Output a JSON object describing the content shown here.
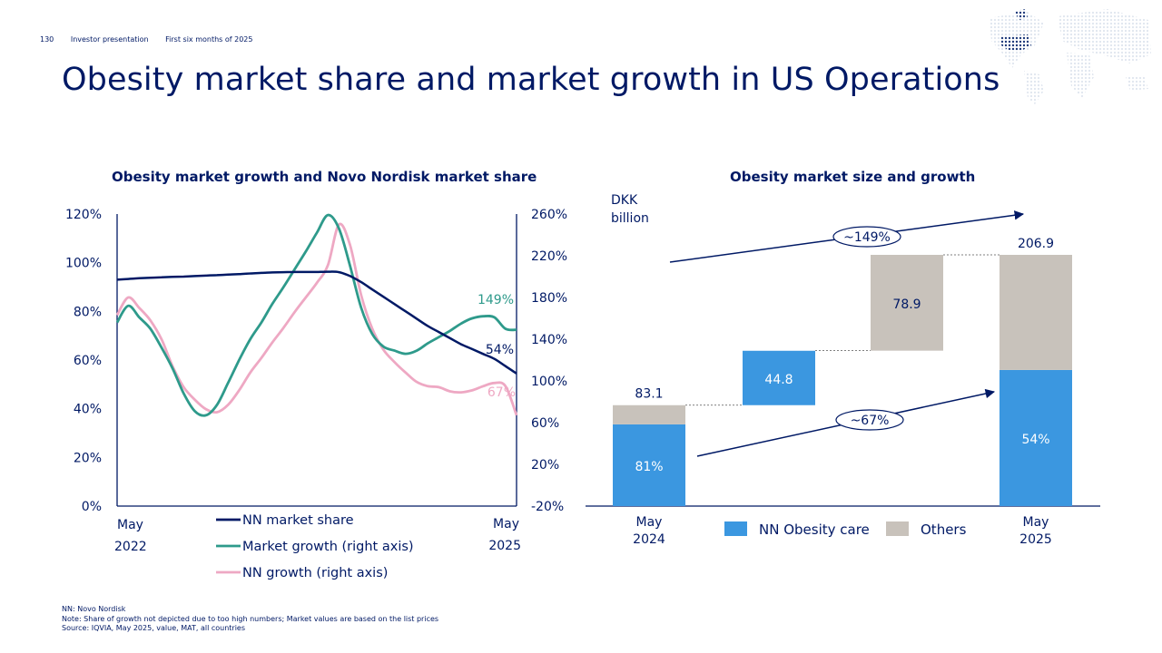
{
  "header": {
    "page_number": "130",
    "section": "Investor presentation",
    "period": "First six months of 2025"
  },
  "title": "Obesity market share and market growth in US Operations",
  "colors": {
    "navy": "#001965",
    "teal": "#2e9a8b",
    "pink": "#eea8c3",
    "blue": "#3b97e0",
    "grey": "#c8c2bb"
  },
  "chart_data": [
    {
      "type": "line",
      "title": "Obesity market growth and Novo Nordisk market share",
      "left_axis": {
        "ticks": [
          "120%",
          "100%",
          "80%",
          "60%",
          "40%",
          "20%",
          "0%"
        ],
        "ylim": [
          0,
          120
        ]
      },
      "right_axis": {
        "ticks": [
          "260%",
          "220%",
          "180%",
          "140%",
          "100%",
          "60%",
          "20%",
          "-20%"
        ],
        "ylim": [
          -20,
          260
        ]
      },
      "x_start": {
        "line1": "May",
        "line2": "2022"
      },
      "x_end": {
        "line1": "May",
        "line2": "2025"
      },
      "x": [
        0,
        1,
        2,
        3,
        4,
        5,
        6,
        7,
        8,
        9,
        10,
        11,
        12,
        13,
        14,
        15,
        16,
        17,
        18,
        19,
        20,
        21,
        22,
        23,
        24,
        25,
        26,
        27,
        28,
        29,
        30,
        31,
        32,
        33,
        34,
        35,
        36
      ],
      "series": [
        {
          "name": "NN market share",
          "axis": "left",
          "end_label": "54%",
          "values": [
            93,
            93.3,
            93.6,
            93.8,
            94,
            94.2,
            94.3,
            94.5,
            94.7,
            94.9,
            95.1,
            95.3,
            95.6,
            95.8,
            96,
            96.1,
            96.2,
            96.2,
            96.2,
            96.3,
            96.1,
            94.5,
            92,
            89,
            86,
            83,
            80,
            77,
            74,
            71.5,
            69,
            66.5,
            64.5,
            62.5,
            60.5,
            57.5,
            54.5
          ]
        },
        {
          "name": "Market growth (right axis)",
          "axis": "right",
          "end_label": "149%",
          "values": [
            156,
            172,
            161,
            150,
            132,
            112,
            88,
            71,
            67,
            77,
            98,
            120,
            140,
            156,
            174,
            190,
            207,
            224,
            242,
            259,
            246,
            210,
            170,
            145,
            133,
            129,
            126,
            129,
            136,
            142,
            148,
            155,
            160,
            162,
            161,
            150,
            149
          ]
        },
        {
          "name": "NN growth (right axis)",
          "axis": "right",
          "end_label": "67%",
          "values": [
            163,
            180,
            170,
            158,
            140,
            114,
            94,
            82,
            73,
            70,
            77,
            91,
            108,
            122,
            137,
            151,
            166,
            180,
            194,
            211,
            250,
            230,
            182,
            150,
            130,
            118,
            108,
            99,
            95,
            94,
            90,
            89,
            91,
            95,
            98,
            95,
            67
          ]
        }
      ],
      "legend": [
        "NN market share",
        "Market growth (right axis)",
        "NN growth (right axis)"
      ]
    },
    {
      "type": "waterfall",
      "title": "Obesity market size and growth",
      "unit_line1": "DKK",
      "unit_line2": "billion",
      "ylim": [
        0,
        220
      ],
      "bars": [
        {
          "label_line1": "May",
          "label_line2": "2024",
          "total": 83.1,
          "total_label": "83.1",
          "segments": [
            {
              "name": "NN Obesity care",
              "value": 67.3,
              "label": "81%"
            },
            {
              "name": "Others",
              "value": 15.8
            }
          ]
        },
        {
          "label_line1": "",
          "label_line2": "",
          "base": 83.1,
          "value": 44.8,
          "value_label": "44.8",
          "kind": "NN Obesity care"
        },
        {
          "label_line1": "",
          "label_line2": "",
          "base": 128,
          "value": 78.9,
          "value_label": "78.9",
          "kind": "Others"
        },
        {
          "label_line1": "May",
          "label_line2": "2025",
          "total": 206.9,
          "total_label": "206.9",
          "segments": [
            {
              "name": "NN Obesity care",
              "value": 112.1,
              "label": "54%"
            },
            {
              "name": "Others",
              "value": 94.8
            }
          ]
        }
      ],
      "annotations": {
        "total_growth": "~149%",
        "nn_growth": "~67%"
      },
      "legend": [
        "NN Obesity care",
        "Others"
      ]
    }
  ],
  "footnotes": [
    "NN: Novo Nordisk",
    "Note: Share of growth not depicted due to too high numbers; Market values are based on the list prices",
    "Source: IQVIA, May 2025, value, MAT, all countries"
  ]
}
